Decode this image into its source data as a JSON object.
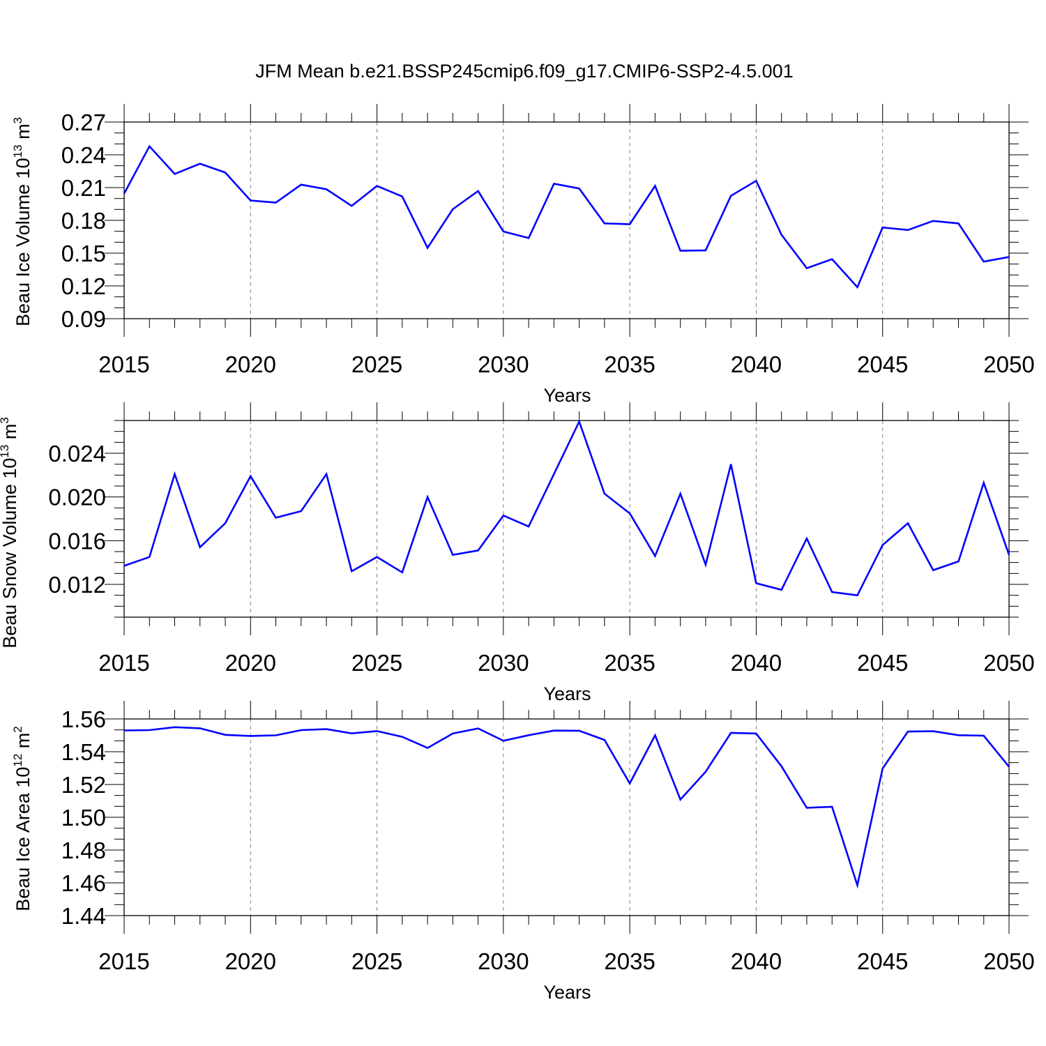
{
  "title": "JFM Mean b.e21.BSSP245cmip6.f09_g17.CMIP6-SSP2-4.5.001",
  "line_color": "#0000ff",
  "chart_data": [
    {
      "type": "line",
      "ylabel": {
        "prefix": "Beau Ice Volume 10",
        "exponent": "13",
        "unit": " m",
        "unit_exponent": "3"
      },
      "xlabel": "Years",
      "xlim": [
        2015,
        2050
      ],
      "ylim": [
        0.09,
        0.27
      ],
      "yticks": [
        "0.09",
        "0.12",
        "0.15",
        "0.18",
        "0.21",
        "0.24",
        "0.27"
      ],
      "xticks": [
        "2015",
        "2020",
        "2025",
        "2030",
        "2035",
        "2040",
        "2045",
        "2050"
      ],
      "x": [
        2015,
        2016,
        2017,
        2018,
        2019,
        2020,
        2021,
        2022,
        2023,
        2024,
        2025,
        2026,
        2027,
        2028,
        2029,
        2030,
        2031,
        2032,
        2033,
        2034,
        2035,
        2036,
        2037,
        2038,
        2039,
        2040,
        2041,
        2042,
        2043,
        2044,
        2045,
        2046,
        2047,
        2048,
        2049,
        2050
      ],
      "values": [
        0.2045,
        0.2478,
        0.2225,
        0.2318,
        0.2238,
        0.1982,
        0.1962,
        0.2127,
        0.2085,
        0.1932,
        0.2115,
        0.2018,
        0.1548,
        0.1902,
        0.2068,
        0.1698,
        0.1638,
        0.2135,
        0.2092,
        0.1772,
        0.1765,
        0.2115,
        0.1522,
        0.1525,
        0.2025,
        0.2162,
        0.1668,
        0.1362,
        0.1445,
        0.1188,
        0.1735,
        0.1712,
        0.1795,
        0.1772,
        0.1422,
        0.1465
      ]
    },
    {
      "type": "line",
      "ylabel": {
        "prefix": "Beau Snow Volume 10",
        "exponent": "13",
        "unit": " m",
        "unit_exponent": "3"
      },
      "xlabel": "Years",
      "xlim": [
        2015,
        2050
      ],
      "ylim": [
        0.009,
        0.027
      ],
      "yticks": [
        "0.012",
        "0.016",
        "0.020",
        "0.024"
      ],
      "ytick_values": [
        0.012,
        0.016,
        0.02,
        0.024
      ],
      "xticks": [
        "2015",
        "2020",
        "2025",
        "2030",
        "2035",
        "2040",
        "2045",
        "2050"
      ],
      "x": [
        2015,
        2016,
        2017,
        2018,
        2019,
        2020,
        2021,
        2022,
        2023,
        2024,
        2025,
        2026,
        2027,
        2028,
        2029,
        2030,
        2031,
        2032,
        2033,
        2034,
        2035,
        2036,
        2037,
        2038,
        2039,
        2040,
        2041,
        2042,
        2043,
        2044,
        2045,
        2046,
        2047,
        2048,
        2049,
        2050
      ],
      "values": [
        0.0137,
        0.0145,
        0.0221,
        0.0154,
        0.0176,
        0.0219,
        0.0181,
        0.0187,
        0.0221,
        0.0132,
        0.0145,
        0.0131,
        0.02,
        0.0147,
        0.0151,
        0.0183,
        0.0173,
        0.0221,
        0.0269,
        0.0203,
        0.0185,
        0.0146,
        0.0203,
        0.0138,
        0.023,
        0.0121,
        0.0115,
        0.0162,
        0.0113,
        0.011,
        0.0156,
        0.0176,
        0.0133,
        0.0141,
        0.0213,
        0.0147
      ]
    },
    {
      "type": "line",
      "ylabel": {
        "prefix": "Beau Ice Area 10",
        "exponent": "12",
        "unit": " m",
        "unit_exponent": "2"
      },
      "xlabel": "Years",
      "xlim": [
        2015,
        2050
      ],
      "ylim": [
        1.44,
        1.56
      ],
      "yticks": [
        "1.44",
        "1.46",
        "1.48",
        "1.50",
        "1.52",
        "1.54",
        "1.56"
      ],
      "xticks": [
        "2015",
        "2020",
        "2025",
        "2030",
        "2035",
        "2040",
        "2045",
        "2050"
      ],
      "x": [
        2015,
        2016,
        2017,
        2018,
        2019,
        2020,
        2021,
        2022,
        2023,
        2024,
        2025,
        2026,
        2027,
        2028,
        2029,
        2030,
        2031,
        2032,
        2033,
        2034,
        2035,
        2036,
        2037,
        2038,
        2039,
        2040,
        2041,
        2042,
        2043,
        2044,
        2045,
        2046,
        2047,
        2048,
        2049,
        2050
      ],
      "values": [
        1.553,
        1.5532,
        1.555,
        1.5543,
        1.5503,
        1.5496,
        1.55,
        1.5532,
        1.5538,
        1.5512,
        1.5526,
        1.5491,
        1.5423,
        1.5511,
        1.5542,
        1.5467,
        1.5501,
        1.5529,
        1.5528,
        1.5472,
        1.5207,
        1.55,
        1.5108,
        1.5278,
        1.5515,
        1.5511,
        1.5311,
        1.5058,
        1.5064,
        1.4585,
        1.5298,
        1.5523,
        1.5525,
        1.5501,
        1.5498,
        1.5308
      ]
    }
  ]
}
